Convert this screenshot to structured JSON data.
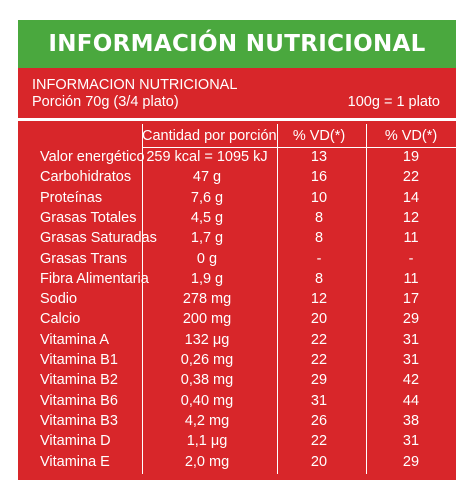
{
  "banner": {
    "title": "INFORMACIÓN NUTRICIONAL"
  },
  "header": {
    "title": "INFORMACION NUTRICIONAL",
    "portion": "Porción 70g (3/4 plato)",
    "equivalence": "100g = 1 plato"
  },
  "table": {
    "columns": [
      "Cantidad por porción",
      "% VD(*)",
      "% VD(*)"
    ],
    "rows": [
      {
        "name": "Valor energético",
        "amount": "259 kcal = 1095 kJ",
        "vd_portion": "13",
        "vd_100g": "19"
      },
      {
        "name": "Carbohidratos",
        "amount": "47 g",
        "vd_portion": "16",
        "vd_100g": "22"
      },
      {
        "name": "Proteínas",
        "amount": "7,6 g",
        "vd_portion": "10",
        "vd_100g": "14"
      },
      {
        "name": "Grasas Totales",
        "amount": "4,5 g",
        "vd_portion": "8",
        "vd_100g": "12"
      },
      {
        "name": "Grasas Saturadas",
        "amount": "1,7 g",
        "vd_portion": "8",
        "vd_100g": "11"
      },
      {
        "name": "Grasas Trans",
        "amount": "0 g",
        "vd_portion": "-",
        "vd_100g": "-"
      },
      {
        "name": "Fibra Alimentaria",
        "amount": "1,9 g",
        "vd_portion": "8",
        "vd_100g": "11"
      },
      {
        "name": "Sodio",
        "amount": "278 mg",
        "vd_portion": "12",
        "vd_100g": "17"
      },
      {
        "name": "Calcio",
        "amount": "200 mg",
        "vd_portion": "20",
        "vd_100g": "29"
      },
      {
        "name": "Vitamina A",
        "amount": "132 μg",
        "vd_portion": "22",
        "vd_100g": "31"
      },
      {
        "name": "Vitamina B1",
        "amount": "0,26 mg",
        "vd_portion": "22",
        "vd_100g": "31"
      },
      {
        "name": "Vitamina B2",
        "amount": "0,38 mg",
        "vd_portion": "29",
        "vd_100g": "42"
      },
      {
        "name": "Vitamina B6",
        "amount": "0,40 mg",
        "vd_portion": "31",
        "vd_100g": "44"
      },
      {
        "name": "Vitamina B3",
        "amount": "4,2 mg",
        "vd_portion": "26",
        "vd_100g": "38"
      },
      {
        "name": "Vitamina D",
        "amount": "1,1 μg",
        "vd_portion": "22",
        "vd_100g": "31"
      },
      {
        "name": "Vitamina E",
        "amount": "2,0 mg",
        "vd_portion": "20",
        "vd_100g": "29"
      }
    ]
  },
  "colors": {
    "banner": "#4aa83e",
    "panel": "#d8262a",
    "text": "#ffffff"
  }
}
